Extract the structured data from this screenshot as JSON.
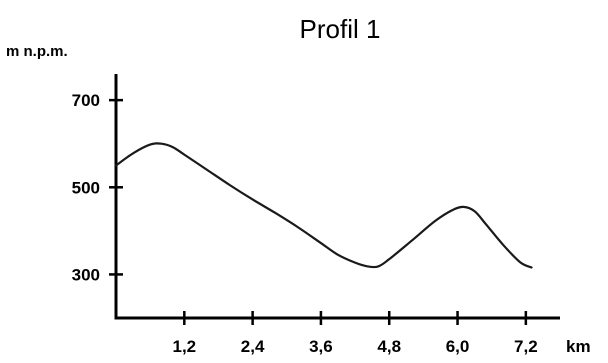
{
  "chart_data": {
    "type": "line",
    "title": "Profil 1",
    "ylabel": "m n.p.m.",
    "xlabel": "km",
    "xlim": [
      0,
      7.8
    ],
    "ylim": [
      200,
      760
    ],
    "x_ticks": [
      1.2,
      2.4,
      3.6,
      4.8,
      6.0,
      7.2
    ],
    "x_tick_labels": [
      "1,2",
      "2,4",
      "3,6",
      "4,8",
      "6,0",
      "7,2"
    ],
    "y_ticks": [
      300,
      500,
      700
    ],
    "y_tick_labels": [
      "300",
      "500",
      "700"
    ],
    "grid": false,
    "legend": "none",
    "line_color": "#1a1a1a",
    "axis_color": "#000000",
    "series": [
      {
        "x": [
          0.0,
          0.3,
          0.6,
          0.8,
          1.0,
          1.2,
          1.6,
          2.0,
          2.4,
          2.8,
          3.2,
          3.6,
          3.9,
          4.2,
          4.4,
          4.6,
          4.8,
          5.2,
          5.6,
          5.9,
          6.1,
          6.3,
          6.5,
          6.8,
          7.1,
          7.3
        ],
        "y": [
          550,
          578,
          598,
          600,
          592,
          575,
          540,
          505,
          472,
          441,
          408,
          372,
          345,
          327,
          319,
          318,
          335,
          378,
          422,
          447,
          455,
          445,
          415,
          368,
          328,
          316
        ]
      }
    ]
  }
}
